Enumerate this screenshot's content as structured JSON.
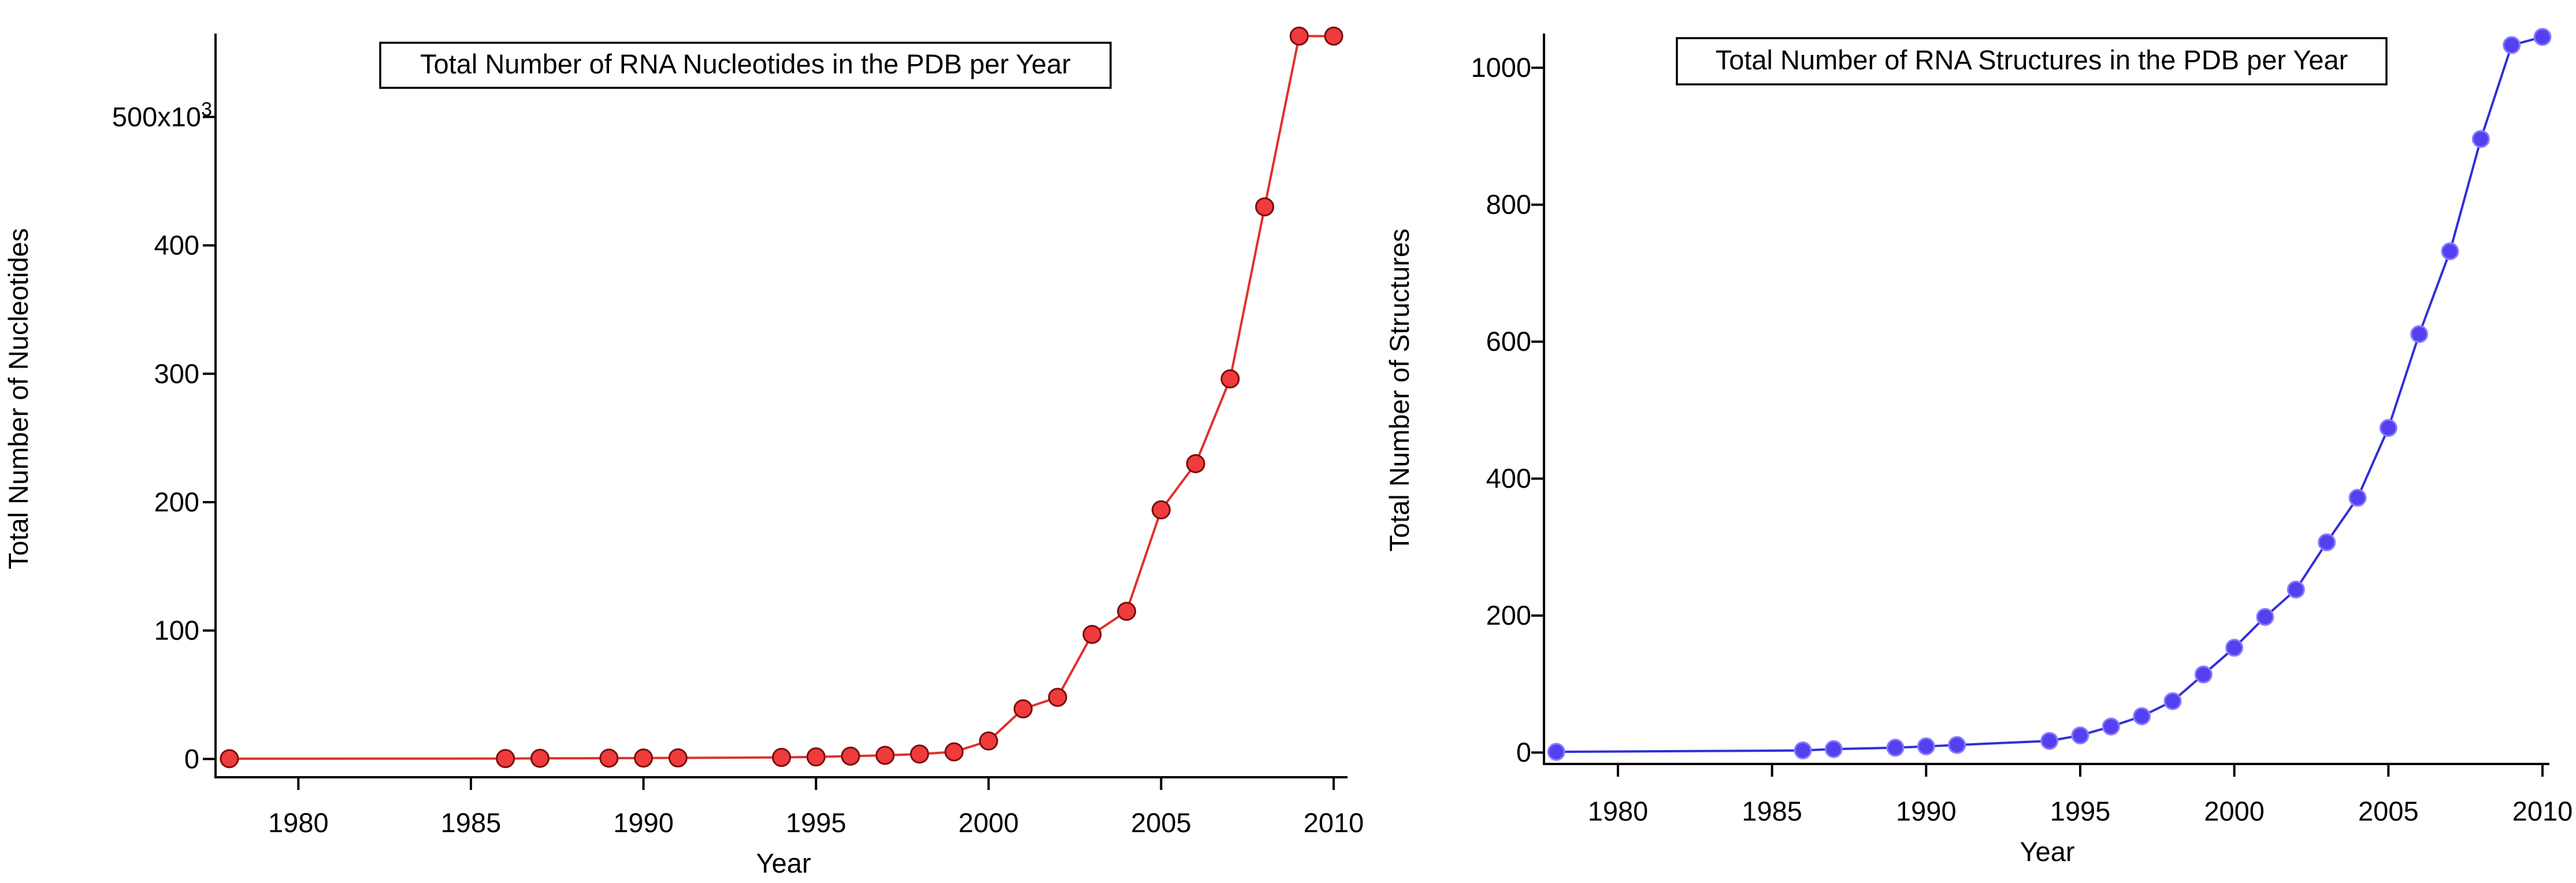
{
  "chart_data": [
    {
      "type": "line",
      "title": "Total Number of RNA Nucleotides in the PDB per Year",
      "xlabel": "Year",
      "ylabel": "Total Number of Nucleotides",
      "ylabel_exponent_note": "500x10^3",
      "xlim": [
        1977.6,
        2010.2
      ],
      "ylim": [
        -12000,
        565000
      ],
      "xticks": [
        1980,
        1985,
        1990,
        1995,
        2000,
        2005,
        2010
      ],
      "yticks": [
        0,
        100000,
        200000,
        300000,
        400000,
        500000
      ],
      "ytick_labels": [
        "0",
        "100",
        "200",
        "300",
        "400",
        "500x10"
      ],
      "ytick_superscript": "3",
      "grid": false,
      "legend": "none",
      "colors": {
        "line": "#e0302c",
        "marker_fill": "#ef3b3b",
        "marker_edge": "#7a0d0d"
      },
      "series": [
        {
          "x": [
            1978,
            1986,
            1987,
            1989,
            1990,
            1991,
            1994,
            1995,
            1996,
            1997,
            1998,
            1999,
            2000,
            2001,
            2002,
            2003,
            2004,
            2005,
            2006,
            2007,
            2008,
            2009,
            2010
          ],
          "values": [
            200,
            300,
            500,
            600,
            700,
            800,
            1200,
            1600,
            2200,
            2800,
            3800,
            5500,
            14000,
            39000,
            48000,
            97000,
            115000,
            194000,
            230000,
            296000,
            430000,
            563000,
            563000
          ]
        }
      ]
    },
    {
      "type": "line",
      "title": "Total Number of RNA Structures in the PDB per Year",
      "xlabel": "Year",
      "ylabel": "Total Number of Structures",
      "xlim": [
        1977.6,
        2010.0
      ],
      "ylim": [
        -15,
        1050
      ],
      "xticks": [
        1980,
        1985,
        1990,
        1995,
        2000,
        2005,
        2010
      ],
      "yticks": [
        0,
        200,
        400,
        600,
        800,
        1000
      ],
      "ytick_labels": [
        "0",
        "200",
        "400",
        "600",
        "800",
        "1000"
      ],
      "grid": false,
      "legend": "none",
      "colors": {
        "line": "#2f2fd8",
        "marker_fill": "#5340f0",
        "marker_edge": "#8a7cff"
      },
      "series": [
        {
          "x": [
            1978,
            1986,
            1987,
            1989,
            1990,
            1991,
            1994,
            1995,
            1996,
            1997,
            1998,
            1999,
            2000,
            2001,
            2002,
            2003,
            2004,
            2005,
            2006,
            2007,
            2008,
            2009,
            2010
          ],
          "values": [
            1,
            3,
            5,
            7,
            9,
            11,
            17,
            25,
            38,
            53,
            75,
            114,
            153,
            198,
            238,
            307,
            372,
            474,
            611,
            732,
            896,
            1033,
            1045
          ]
        }
      ]
    }
  ]
}
